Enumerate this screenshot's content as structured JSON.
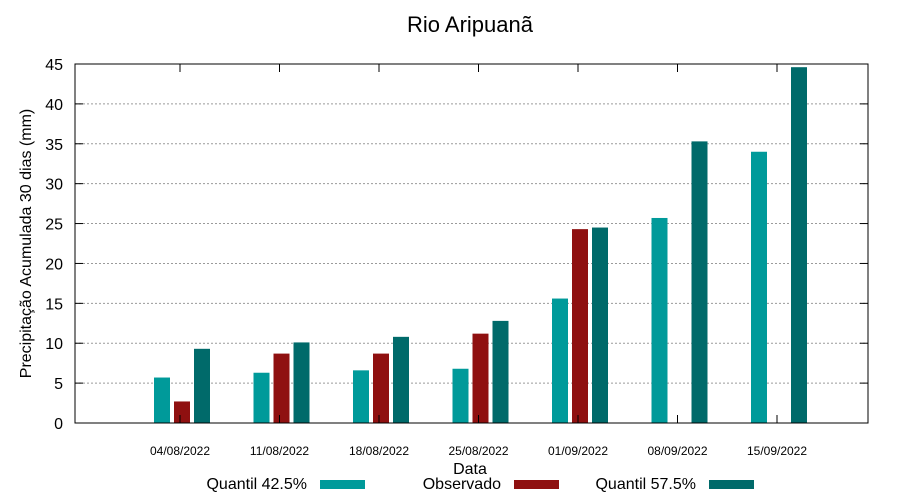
{
  "chart_data": {
    "type": "bar",
    "title": "Rio Aripuanã",
    "xlabel": "Data",
    "ylabel": "Precipitação Acumulada 30 dias (mm)",
    "ylim": [
      0,
      45
    ],
    "yticks": [
      "0",
      "5",
      "10",
      "15",
      "20",
      "25",
      "30",
      "35",
      "40",
      "45"
    ],
    "grid": true,
    "legend_position": "bottom",
    "categories": [
      "04/08/2022",
      "11/08/2022",
      "18/08/2022",
      "25/08/2022",
      "01/09/2022",
      "08/09/2022",
      "15/09/2022"
    ],
    "series": [
      {
        "name": "Quantil 42.5%",
        "color": "#009a9a",
        "values": [
          5.7,
          6.3,
          6.6,
          6.8,
          15.6,
          25.7,
          34.0
        ]
      },
      {
        "name": "Observado",
        "color": "#8f1010",
        "values": [
          2.7,
          8.7,
          8.7,
          11.2,
          24.3,
          null,
          null
        ]
      },
      {
        "name": "Quantil 57.5%",
        "color": "#006a6a",
        "values": [
          9.3,
          10.1,
          10.8,
          12.8,
          24.5,
          35.3,
          44.6
        ]
      }
    ]
  }
}
